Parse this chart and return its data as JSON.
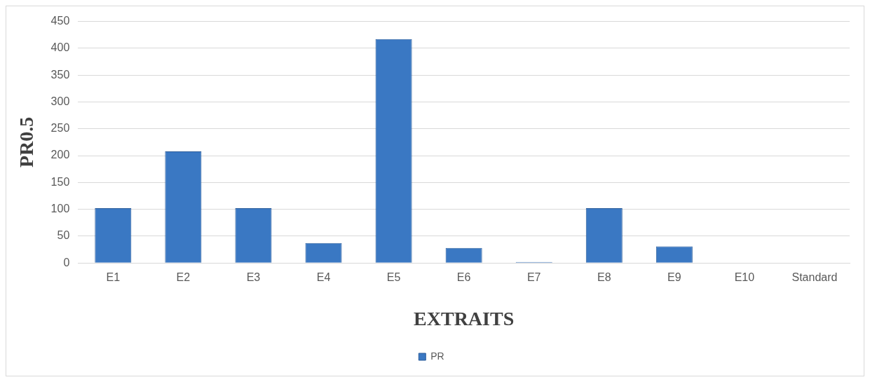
{
  "chart_data": {
    "type": "bar",
    "xlabel": "EXTRAITS",
    "ylabel": "PR0.5",
    "categories": [
      "E1",
      "E2",
      "E3",
      "E4",
      "E5",
      "E6",
      "E7",
      "E8",
      "E9",
      "E10",
      "Standard"
    ],
    "series": [
      {
        "name": "PR",
        "color": "#3a78c3",
        "values": [
          102,
          208,
          102,
          37,
          417,
          28,
          2,
          102,
          31,
          0,
          0
        ]
      }
    ],
    "ylim": [
      0,
      450
    ],
    "yticks": [
      0,
      50,
      100,
      150,
      200,
      250,
      300,
      350,
      400,
      450
    ],
    "grid": "y",
    "legend": "bottom"
  }
}
